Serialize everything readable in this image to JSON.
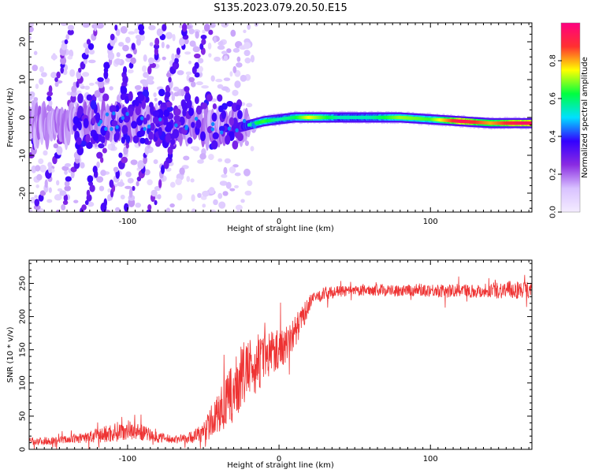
{
  "figure": {
    "title": "S135.2023.079.20.50.E15"
  },
  "chart_data": [
    {
      "type": "heatmap",
      "xlabel": "Height of straight line (km)",
      "ylabel": "Frequency (Hz)",
      "xlim": [
        -165,
        167
      ],
      "ylim": [
        -25,
        25
      ],
      "xticks": [
        -100,
        0,
        100
      ],
      "yticks": [
        -20,
        -10,
        0,
        10,
        20
      ],
      "grid": false,
      "colorbar": {
        "label": "Normalized spectral amplitude",
        "range": [
          0,
          1
        ],
        "ticks": [
          0.0,
          0.2,
          0.4,
          0.6,
          0.8
        ],
        "tick_labels": [
          "0.0",
          "0.2",
          "0.4",
          "0.6",
          "0.8"
        ],
        "colors": [
          "#f4ecff",
          "#d9c2ff",
          "#8a2be2",
          "#3300ff",
          "#00e0ff",
          "#00ff40",
          "#ffff00",
          "#ff3030",
          "#ff0080"
        ]
      },
      "ridge": [
        {
          "x": -125,
          "y": -2.0,
          "amp": 0.3
        },
        {
          "x": -100,
          "y": -1.0,
          "amp": 0.35
        },
        {
          "x": -60,
          "y": -2.0,
          "amp": 0.3
        },
        {
          "x": -30,
          "y": -3.0,
          "amp": 0.3
        },
        {
          "x": -20,
          "y": -2.0,
          "amp": 0.55
        },
        {
          "x": -10,
          "y": -1.0,
          "amp": 0.65
        },
        {
          "x": 0,
          "y": -0.5,
          "amp": 0.55
        },
        {
          "x": 10,
          "y": 0.0,
          "amp": 0.6
        },
        {
          "x": 20,
          "y": 0.0,
          "amp": 0.75
        },
        {
          "x": 40,
          "y": 0.0,
          "amp": 0.55
        },
        {
          "x": 60,
          "y": 0.0,
          "amp": 0.55
        },
        {
          "x": 80,
          "y": 0.0,
          "amp": 0.7
        },
        {
          "x": 100,
          "y": -0.5,
          "amp": 0.65
        },
        {
          "x": 120,
          "y": -1.0,
          "amp": 0.95
        },
        {
          "x": 140,
          "y": -1.5,
          "amp": 0.8
        },
        {
          "x": 160,
          "y": -1.5,
          "amp": 0.95
        }
      ]
    },
    {
      "type": "line",
      "xlabel": "Height of straight line (km)",
      "ylabel": "SNR (10 * v/v)",
      "xlim": [
        -165,
        167
      ],
      "ylim": [
        0,
        285
      ],
      "xticks": [
        -100,
        0,
        100
      ],
      "yticks": [
        0,
        50,
        100,
        150,
        200,
        250
      ],
      "grid": false,
      "color": "#ee3333",
      "series": [
        {
          "x": [
            -165,
            -150,
            -140,
            -130,
            -120,
            -110,
            -100,
            -90,
            -80,
            -70,
            -60,
            -50,
            -45,
            -40,
            -35,
            -30,
            -25,
            -20,
            -15,
            -10,
            -5,
            0,
            5,
            10,
            15,
            20,
            25,
            30,
            40,
            50,
            60,
            70,
            80,
            90,
            100,
            110,
            120,
            130,
            140,
            150,
            160,
            167
          ],
          "y": [
            12,
            13,
            15,
            17,
            20,
            25,
            30,
            25,
            18,
            15,
            17,
            25,
            40,
            55,
            70,
            85,
            110,
            120,
            125,
            135,
            150,
            150,
            160,
            175,
            195,
            220,
            230,
            235,
            238,
            238,
            240,
            240,
            238,
            240,
            240,
            238,
            240,
            238,
            240,
            240,
            240,
            240
          ],
          "spread": [
            6,
            6,
            6,
            8,
            12,
            15,
            15,
            12,
            8,
            6,
            8,
            15,
            25,
            30,
            40,
            45,
            50,
            45,
            40,
            40,
            35,
            30,
            30,
            25,
            20,
            12,
            10,
            10,
            8,
            8,
            8,
            10,
            8,
            10,
            10,
            10,
            10,
            10,
            12,
            14,
            14,
            12
          ]
        }
      ]
    }
  ]
}
